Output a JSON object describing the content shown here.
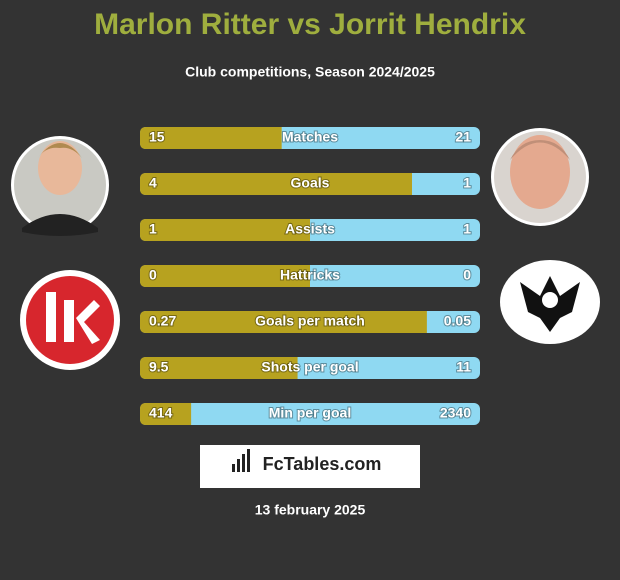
{
  "header": {
    "title": "Marlon Ritter vs Jorrit Hendrix",
    "subtitle": "Club competitions, Season 2024/2025"
  },
  "rows": [
    {
      "label": "Matches",
      "left": 15,
      "right": 21
    },
    {
      "label": "Goals",
      "left": 4,
      "right": 1
    },
    {
      "label": "Assists",
      "left": 1,
      "right": 1
    },
    {
      "label": "Hattricks",
      "left": 0,
      "right": 0
    },
    {
      "label": "Goals per match",
      "left": 0.27,
      "right": 0.05
    },
    {
      "label": "Shots per goal",
      "left": 9.5,
      "right": 11
    },
    {
      "label": "Min per goal",
      "left": 414,
      "right": 2340
    }
  ],
  "brand": "FcTables.com",
  "date": "13 february 2025"
}
